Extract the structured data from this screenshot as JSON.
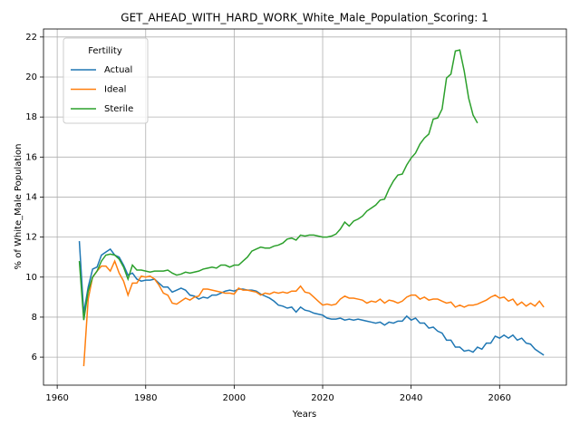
{
  "chart_data": {
    "type": "line",
    "title": "GET_AHEAD_WITH_HARD_WORK_White_Male_Population_Scoring: 1",
    "xlabel": "Years",
    "ylabel": "% of White_Male Population",
    "legend_title": "Fertility",
    "legend": "upper left",
    "grid": true,
    "xlim": [
      1956.9,
      2075.1
    ],
    "xticks": [
      1960,
      1980,
      2000,
      2020,
      2040,
      2060
    ],
    "ylim": [
      4.6,
      22.4
    ],
    "yticks": [
      6,
      8,
      10,
      12,
      14,
      16,
      18,
      20,
      22
    ],
    "x": [
      1965,
      1966,
      1967,
      1968,
      1969,
      1970,
      1971,
      1972,
      1973,
      1974,
      1975,
      1976,
      1977,
      1978,
      1979,
      1980,
      1981,
      1982,
      1983,
      1984,
      1985,
      1986,
      1987,
      1988,
      1989,
      1990,
      1991,
      1992,
      1993,
      1994,
      1995,
      1996,
      1997,
      1998,
      1999,
      2000,
      2001,
      2002,
      2003,
      2004,
      2005,
      2006,
      2007,
      2008,
      2009,
      2010,
      2011,
      2012,
      2013,
      2014,
      2015,
      2016,
      2017,
      2018,
      2019,
      2020,
      2021,
      2022,
      2023,
      2024,
      2025,
      2026,
      2027,
      2028,
      2029,
      2030,
      2031,
      2032,
      2033,
      2034,
      2035,
      2036,
      2037,
      2038,
      2039,
      2040,
      2041,
      2042,
      2043,
      2044,
      2045,
      2046,
      2047,
      2048,
      2049,
      2050,
      2051,
      2052,
      2053,
      2054,
      2055,
      2056,
      2057,
      2058,
      2059,
      2060,
      2061,
      2062,
      2063,
      2064,
      2065,
      2066,
      2067,
      2068,
      2069,
      2070
    ],
    "series": [
      {
        "name": "Actual",
        "color": "#1f77b4",
        "values": [
          11.8,
          8.2,
          9.5,
          10.4,
          10.5,
          11.1,
          11.25,
          11.4,
          11.1,
          11.0,
          10.6,
          10.1,
          10.2,
          9.9,
          9.8,
          9.85,
          9.85,
          9.9,
          9.7,
          9.5,
          9.5,
          9.25,
          9.35,
          9.45,
          9.35,
          9.1,
          9.05,
          8.9,
          9.0,
          8.95,
          9.1,
          9.1,
          9.2,
          9.3,
          9.35,
          9.3,
          9.4,
          9.4,
          9.35,
          9.35,
          9.3,
          9.15,
          9.05,
          8.95,
          8.8,
          8.6,
          8.55,
          8.45,
          8.5,
          8.25,
          8.5,
          8.35,
          8.3,
          8.2,
          8.15,
          8.1,
          7.95,
          7.9,
          7.9,
          7.95,
          7.85,
          7.9,
          7.85,
          7.9,
          7.85,
          7.8,
          7.75,
          7.7,
          7.75,
          7.6,
          7.75,
          7.7,
          7.8,
          7.8,
          8.05,
          7.85,
          7.95,
          7.7,
          7.7,
          7.45,
          7.5,
          7.3,
          7.2,
          6.85,
          6.85,
          6.5,
          6.5,
          6.3,
          6.35,
          6.25,
          6.5,
          6.4,
          6.7,
          6.7,
          7.05,
          6.95,
          7.1,
          6.95,
          7.1,
          6.85,
          6.95,
          6.7,
          6.65,
          6.4,
          6.25,
          6.1
        ]
      },
      {
        "name": "Ideal",
        "color": "#ff7f0e",
        "values": [
          null,
          5.55,
          8.9,
          10.0,
          10.3,
          10.55,
          10.55,
          10.3,
          10.8,
          10.2,
          9.8,
          9.1,
          9.7,
          9.7,
          10.05,
          10.0,
          10.05,
          9.9,
          9.6,
          9.2,
          9.1,
          8.7,
          8.65,
          8.8,
          8.95,
          8.85,
          9.0,
          9.05,
          9.4,
          9.4,
          9.35,
          9.3,
          9.25,
          9.2,
          9.2,
          9.15,
          9.45,
          9.35,
          9.35,
          9.3,
          9.25,
          9.1,
          9.2,
          9.15,
          9.25,
          9.2,
          9.25,
          9.2,
          9.3,
          9.3,
          9.55,
          9.25,
          9.2,
          9.0,
          8.8,
          8.6,
          8.65,
          8.6,
          8.65,
          8.9,
          9.05,
          8.95,
          8.95,
          8.9,
          8.85,
          8.7,
          8.8,
          8.75,
          8.9,
          8.7,
          8.85,
          8.8,
          8.7,
          8.8,
          9.0,
          9.1,
          9.1,
          8.9,
          9.0,
          8.85,
          8.9,
          8.9,
          8.8,
          8.7,
          8.75,
          8.5,
          8.6,
          8.5,
          8.6,
          8.6,
          8.65,
          8.75,
          8.85,
          9.0,
          9.1,
          8.95,
          9.0,
          8.8,
          8.9,
          8.6,
          8.75,
          8.55,
          8.7,
          8.55,
          8.8,
          8.5
        ]
      },
      {
        "name": "Sterile",
        "color": "#2ca02c",
        "values": [
          10.8,
          7.85,
          9.3,
          10.0,
          10.3,
          10.8,
          11.1,
          11.15,
          11.1,
          10.9,
          10.5,
          9.9,
          10.6,
          10.35,
          10.35,
          10.3,
          10.25,
          10.3,
          10.3,
          10.3,
          10.35,
          10.2,
          10.1,
          10.15,
          10.25,
          10.2,
          10.25,
          10.3,
          10.4,
          10.45,
          10.5,
          10.45,
          10.6,
          10.6,
          10.5,
          10.6,
          10.6,
          10.8,
          11.0,
          11.3,
          11.4,
          11.5,
          11.45,
          11.45,
          11.55,
          11.6,
          11.7,
          11.9,
          11.95,
          11.85,
          12.1,
          12.05,
          12.1,
          12.1,
          12.05,
          12.0,
          12.0,
          12.05,
          12.15,
          12.4,
          12.75,
          12.55,
          12.8,
          12.9,
          13.05,
          13.3,
          13.45,
          13.6,
          13.85,
          13.9,
          14.4,
          14.8,
          15.1,
          15.15,
          15.6,
          15.95,
          16.2,
          16.65,
          16.95,
          17.15,
          17.9,
          17.95,
          18.4,
          19.95,
          20.15,
          21.3,
          21.35,
          20.3,
          18.95,
          18.1,
          17.7,
          null,
          null,
          null,
          null,
          null,
          null,
          null,
          null,
          null,
          null,
          null,
          null,
          null,
          null,
          null
        ]
      }
    ]
  }
}
